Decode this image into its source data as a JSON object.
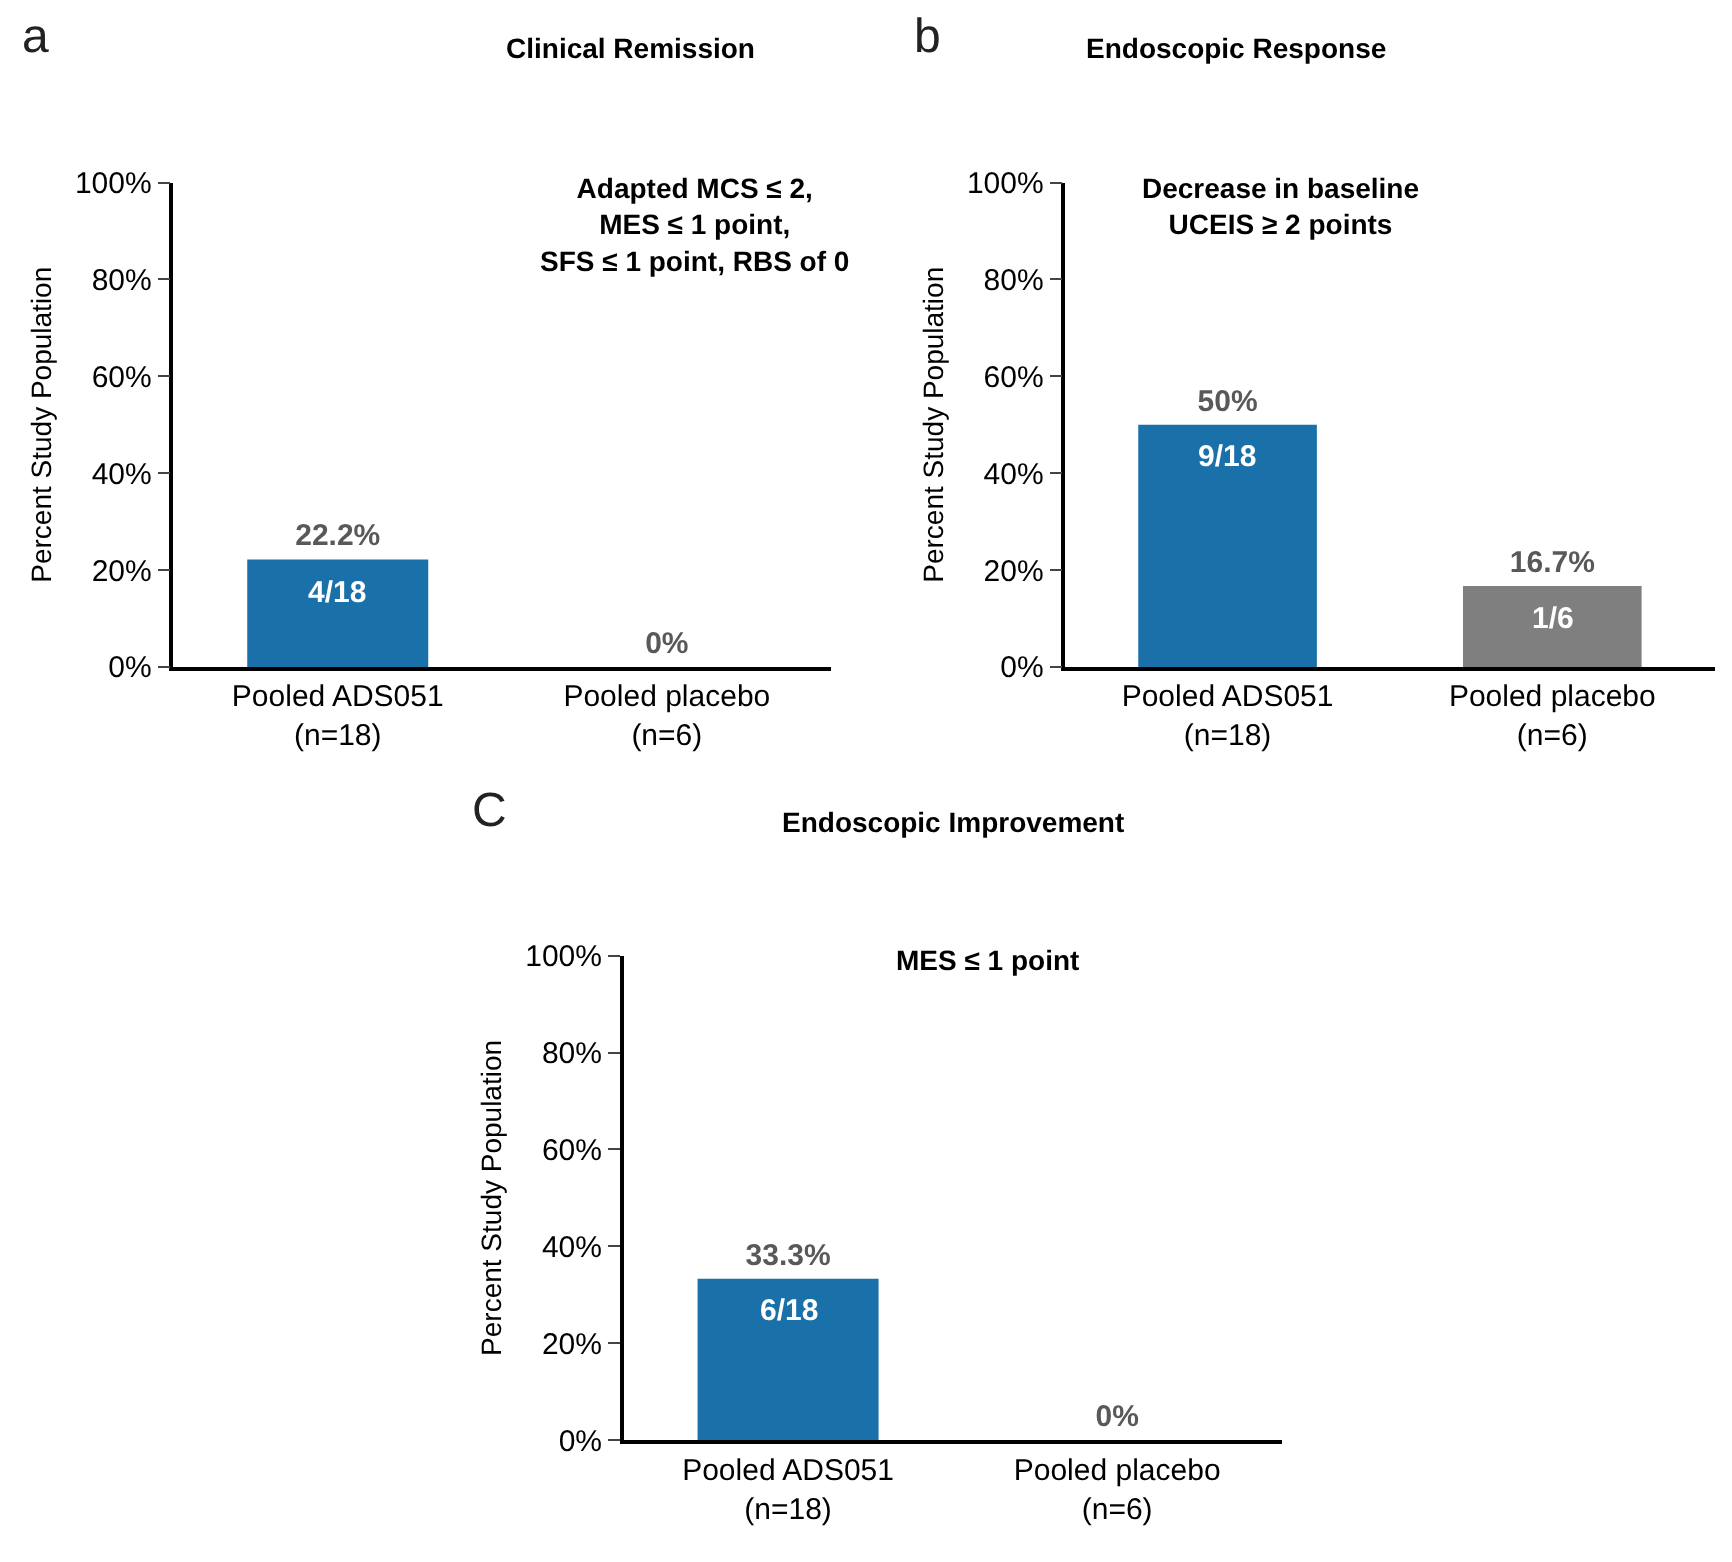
{
  "chart_data": [
    {
      "type": "bar",
      "title": "Clinical Remission",
      "subtitle": "Adapted MCS ≤ 2,\nMES ≤ 1 point,\nSFS ≤ 1 point, RBS of 0",
      "ylabel": "Percent Study Population",
      "categories": [
        "Pooled ADS051\n(n=18)",
        "Pooled placebo\n(n=6)"
      ],
      "values": [
        22.2,
        0
      ],
      "colors": [
        "#1a70a8",
        "#7f7f7f"
      ],
      "value_labels": [
        "22.2%",
        "0%"
      ],
      "ylim": [
        0,
        100
      ],
      "yticks": [
        {
          "value": 0,
          "label": "0%"
        },
        {
          "value": 20,
          "label": "20%"
        },
        {
          "value": 40,
          "label": "40%"
        },
        {
          "value": 60,
          "label": "60%"
        },
        {
          "value": 80,
          "label": "80%"
        },
        {
          "value": 100,
          "label": "100%"
        }
      ],
      "annotations": [
        "a",
        {
          "text": "4/18",
          "x": "Pooled ADS051\n(n=18)",
          "y": 22.2
        }
      ]
    },
    {
      "type": "bar",
      "title": "Endoscopic Response",
      "subtitle": "Decrease in baseline\nUCEIS ≥ 2 points",
      "ylabel": "Percent Study Population",
      "categories": [
        "Pooled ADS051\n(n=18)",
        "Pooled placebo\n(n=6)"
      ],
      "values": [
        50,
        16.7
      ],
      "colors": [
        "#1a70a8",
        "#7f7f7f"
      ],
      "value_labels": [
        "50%",
        "16.7%"
      ],
      "ylim": [
        0,
        100
      ],
      "yticks": [
        {
          "value": 0,
          "label": "0%"
        },
        {
          "value": 20,
          "label": "20%"
        },
        {
          "value": 40,
          "label": "40%"
        },
        {
          "value": 60,
          "label": "60%"
        },
        {
          "value": 80,
          "label": "80%"
        },
        {
          "value": 100,
          "label": "100%"
        }
      ],
      "annotations": [
        "b",
        {
          "text": "9/18",
          "x": "Pooled ADS051\n(n=18)",
          "y": 50
        },
        {
          "text": "1/6",
          "x": "Pooled placebo\n(n=6)",
          "y": 16.7
        }
      ]
    },
    {
      "type": "bar",
      "title": "Endoscopic Improvement",
      "subtitle": "MES ≤ 1 point",
      "ylabel": "Percent Study Population",
      "categories": [
        "Pooled ADS051\n(n=18)",
        "Pooled placebo\n(n=6)"
      ],
      "values": [
        33.3,
        0
      ],
      "colors": [
        "#1a70a8",
        "#7f7f7f"
      ],
      "value_labels": [
        "33.3%",
        "0%"
      ],
      "ylim": [
        0,
        100
      ],
      "yticks": [
        {
          "value": 0,
          "label": "0%"
        },
        {
          "value": 20,
          "label": "20%"
        },
        {
          "value": 40,
          "label": "40%"
        },
        {
          "value": 60,
          "label": "60%"
        },
        {
          "value": 80,
          "label": "80%"
        },
        {
          "value": 100,
          "label": "100%"
        }
      ],
      "annotations": [
        "C",
        {
          "text": "6/18",
          "x": "Pooled ADS051\n(n=18)",
          "y": 33.3
        }
      ]
    }
  ]
}
